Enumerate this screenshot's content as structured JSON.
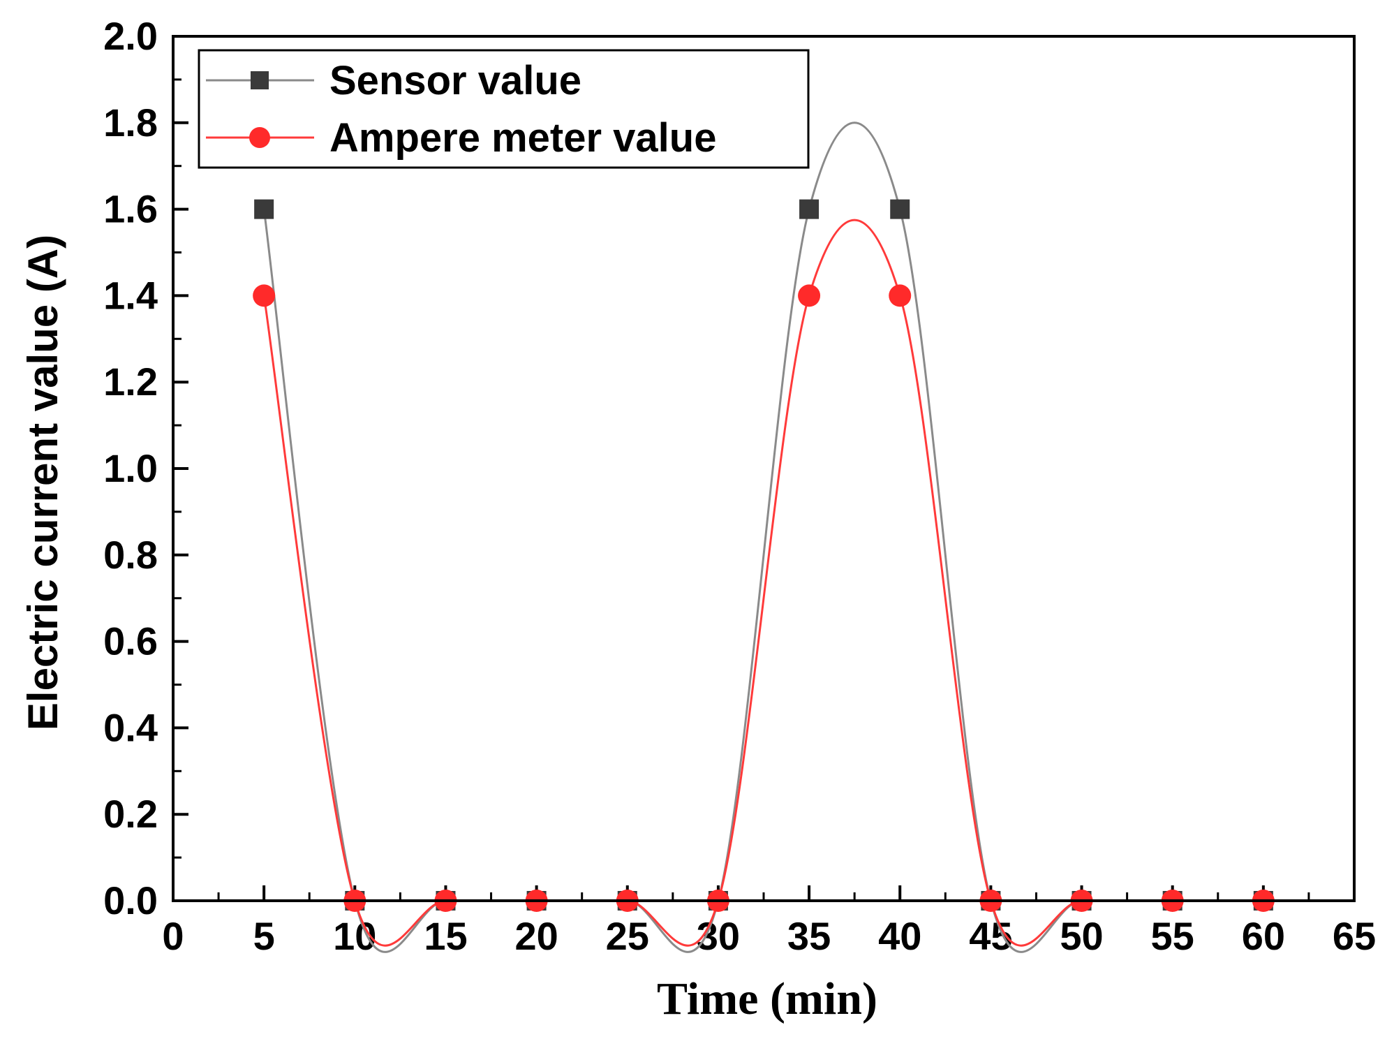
{
  "chart_data": {
    "type": "line",
    "xlabel": "Time (min)",
    "ylabel": "Electric current value (A)",
    "xlim": [
      0,
      65
    ],
    "ylim": [
      0,
      2.0
    ],
    "x_ticks": [
      "0",
      "5",
      "10",
      "15",
      "20",
      "25",
      "30",
      "35",
      "40",
      "45",
      "50",
      "55",
      "60",
      "65"
    ],
    "y_ticks": [
      "0.0",
      "0.2",
      "0.4",
      "0.6",
      "0.8",
      "1.0",
      "1.2",
      "1.4",
      "1.6",
      "1.8",
      "2.0"
    ],
    "x_tick_values": [
      0,
      5,
      10,
      15,
      20,
      25,
      30,
      35,
      40,
      45,
      50,
      55,
      60,
      65
    ],
    "y_tick_values": [
      0,
      0.2,
      0.4,
      0.6,
      0.8,
      1.0,
      1.2,
      1.4,
      1.6,
      1.8,
      2.0
    ],
    "x": [
      5,
      10,
      15,
      20,
      25,
      30,
      35,
      40,
      45,
      50,
      55,
      60
    ],
    "series": [
      {
        "name": "Sensor value",
        "values": [
          1.6,
          0,
          0,
          0,
          0,
          0,
          1.6,
          1.6,
          0,
          0,
          0,
          0
        ],
        "color": "#3a3a3a",
        "line_color": "#8a8a8a",
        "marker": "square"
      },
      {
        "name": "Ampere meter value",
        "values": [
          1.4,
          0,
          0,
          0,
          0,
          0,
          1.4,
          1.4,
          0,
          0,
          0,
          0
        ],
        "color": "#ff2a2a",
        "line_color": "#ff3a3a",
        "marker": "circle"
      }
    ],
    "smoothed": true,
    "grid": false,
    "legend_position": "top-left"
  }
}
